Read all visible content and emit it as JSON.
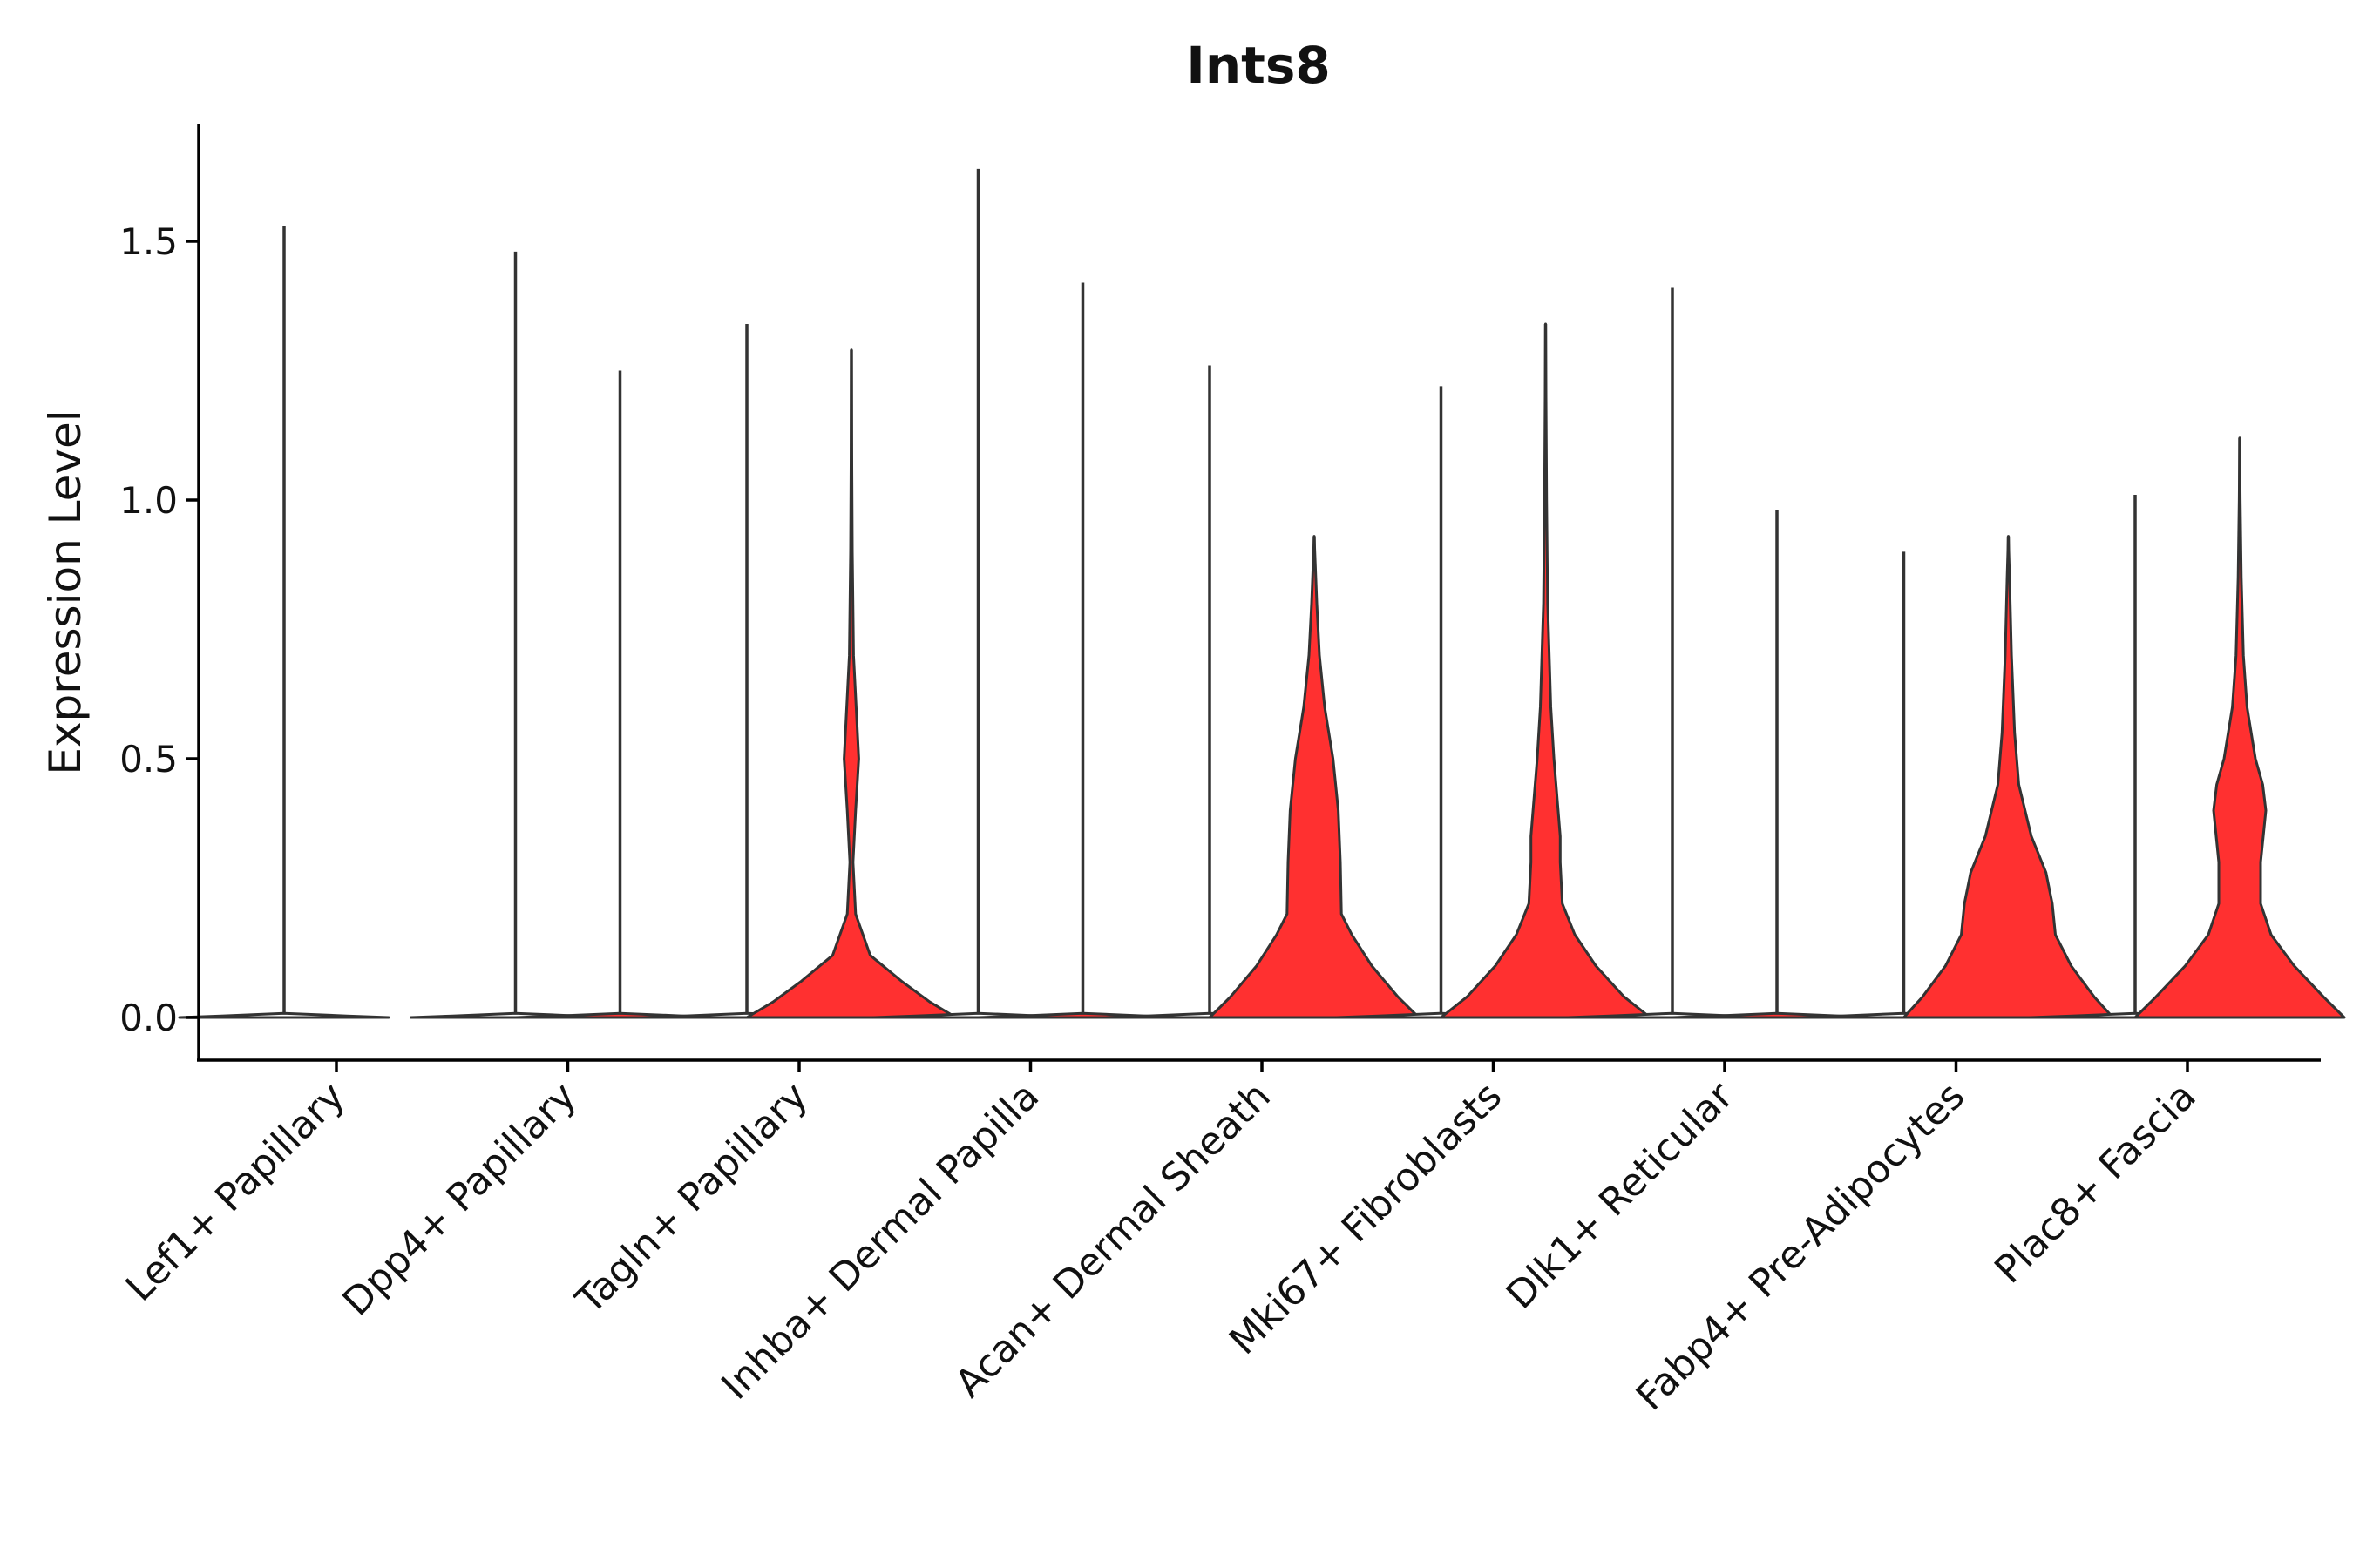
{
  "chart_data": {
    "type": "violin",
    "title": "Ints8",
    "xlabel": "",
    "ylabel": "Expression Level",
    "ylim": [
      -0.085,
      1.73
    ],
    "yticks": [
      0.0,
      0.5,
      1.0,
      1.5
    ],
    "ytick_labels": [
      "0.0",
      "0.5",
      "1.0",
      "1.5"
    ],
    "grid": false,
    "legend": "none",
    "categories": [
      "Lef1+ Papillary",
      "Dpp4+ Papillary",
      "Tagln+ Papillary",
      "Inhba+ Dermal Papilla",
      "Acan+ Dermal Sheath",
      "Mki67+ Fibroblasts",
      "Dlk1+ Reticular",
      "Fabp4+ Pre-Adipocytes",
      "Plac8+ Fascia"
    ],
    "groups": [
      {
        "name": "",
        "color": "#ffffff"
      },
      {
        "name": "",
        "color": "#ff3030"
      }
    ],
    "series": [
      {
        "category": "Lef1+ Papillary",
        "group": 0,
        "max": 1.53,
        "profile": [
          [
            0.0,
            1.0
          ],
          [
            0.003,
            0.6
          ],
          [
            0.008,
            0.0
          ]
        ]
      },
      {
        "category": "Lef1+ Papillary",
        "group": 1,
        "max": 0.0,
        "profile": []
      },
      {
        "category": "Dpp4+ Papillary",
        "group": 0,
        "max": 1.48,
        "profile": [
          [
            0.0,
            1.0
          ],
          [
            0.003,
            0.6
          ],
          [
            0.008,
            0.0
          ]
        ]
      },
      {
        "category": "Dpp4+ Papillary",
        "group": 1,
        "max": 1.25,
        "profile": [
          [
            0.0,
            1.0
          ],
          [
            0.003,
            0.6
          ],
          [
            0.008,
            0.0
          ]
        ]
      },
      {
        "category": "Tagln+ Papillary",
        "group": 0,
        "max": 1.34,
        "profile": [
          [
            0.0,
            1.0
          ],
          [
            0.003,
            0.6
          ],
          [
            0.008,
            0.0
          ]
        ]
      },
      {
        "category": "Tagln+ Papillary",
        "group": 1,
        "max": 1.29,
        "profile": [
          [
            0.0,
            1.0
          ],
          [
            0.03,
            0.75
          ],
          [
            0.07,
            0.48
          ],
          [
            0.12,
            0.18
          ],
          [
            0.2,
            0.04
          ],
          [
            0.3,
            0.015
          ],
          [
            0.4,
            0.04
          ],
          [
            0.5,
            0.07
          ],
          [
            0.58,
            0.05
          ],
          [
            0.7,
            0.02
          ],
          [
            0.9,
            0.008
          ],
          [
            1.1,
            0.003
          ],
          [
            1.29,
            0.0
          ]
        ]
      },
      {
        "category": "Inhba+ Dermal Papilla",
        "group": 0,
        "max": 1.64,
        "profile": [
          [
            0.0,
            1.0
          ],
          [
            0.003,
            0.6
          ],
          [
            0.008,
            0.0
          ]
        ]
      },
      {
        "category": "Inhba+ Dermal Papilla",
        "group": 1,
        "max": 1.42,
        "profile": [
          [
            0.0,
            1.0
          ],
          [
            0.003,
            0.6
          ],
          [
            0.008,
            0.0
          ]
        ]
      },
      {
        "category": "Acan+ Dermal Sheath",
        "group": 0,
        "max": 1.26,
        "profile": [
          [
            0.0,
            1.0
          ],
          [
            0.003,
            0.6
          ],
          [
            0.008,
            0.0
          ]
        ]
      },
      {
        "category": "Acan+ Dermal Sheath",
        "group": 1,
        "max": 0.93,
        "profile": [
          [
            0.0,
            1.0
          ],
          [
            0.04,
            0.8
          ],
          [
            0.1,
            0.55
          ],
          [
            0.16,
            0.36
          ],
          [
            0.2,
            0.26
          ],
          [
            0.3,
            0.25
          ],
          [
            0.4,
            0.23
          ],
          [
            0.5,
            0.18
          ],
          [
            0.6,
            0.1
          ],
          [
            0.7,
            0.05
          ],
          [
            0.8,
            0.025
          ],
          [
            0.93,
            0.0
          ]
        ]
      },
      {
        "category": "Mki67+ Fibroblasts",
        "group": 0,
        "max": 1.22,
        "profile": [
          [
            0.0,
            1.0
          ],
          [
            0.003,
            0.6
          ],
          [
            0.008,
            0.0
          ]
        ]
      },
      {
        "category": "Mki67+ Fibroblasts",
        "group": 1,
        "max": 1.34,
        "profile": [
          [
            0.0,
            1.0
          ],
          [
            0.04,
            0.75
          ],
          [
            0.1,
            0.48
          ],
          [
            0.16,
            0.28
          ],
          [
            0.22,
            0.16
          ],
          [
            0.3,
            0.14
          ],
          [
            0.35,
            0.14
          ],
          [
            0.4,
            0.12
          ],
          [
            0.5,
            0.08
          ],
          [
            0.6,
            0.05
          ],
          [
            0.8,
            0.02
          ],
          [
            1.0,
            0.01
          ],
          [
            1.2,
            0.004
          ],
          [
            1.34,
            0.0
          ]
        ]
      },
      {
        "category": "Dlk1+ Reticular",
        "group": 0,
        "max": 1.41,
        "profile": [
          [
            0.0,
            1.0
          ],
          [
            0.003,
            0.6
          ],
          [
            0.008,
            0.0
          ]
        ]
      },
      {
        "category": "Dlk1+ Reticular",
        "group": 1,
        "max": 0.98,
        "profile": [
          [
            0.0,
            1.0
          ],
          [
            0.003,
            0.6
          ],
          [
            0.008,
            0.0
          ]
        ]
      },
      {
        "category": "Fabp4+ Pre-Adipocytes",
        "group": 0,
        "max": 0.9,
        "profile": [
          [
            0.0,
            1.0
          ],
          [
            0.003,
            0.6
          ],
          [
            0.008,
            0.0
          ]
        ]
      },
      {
        "category": "Fabp4+ Pre-Adipocytes",
        "group": 1,
        "max": 0.93,
        "profile": [
          [
            0.0,
            1.0
          ],
          [
            0.04,
            0.82
          ],
          [
            0.1,
            0.6
          ],
          [
            0.16,
            0.45
          ],
          [
            0.22,
            0.42
          ],
          [
            0.28,
            0.36
          ],
          [
            0.35,
            0.22
          ],
          [
            0.45,
            0.1
          ],
          [
            0.55,
            0.06
          ],
          [
            0.7,
            0.03
          ],
          [
            0.85,
            0.012
          ],
          [
            0.93,
            0.0
          ]
        ]
      },
      {
        "category": "Plac8+ Fascia",
        "group": 0,
        "max": 1.01,
        "profile": [
          [
            0.0,
            1.0
          ],
          [
            0.003,
            0.6
          ],
          [
            0.008,
            0.0
          ]
        ]
      },
      {
        "category": "Plac8+ Fascia",
        "group": 1,
        "max": 1.12,
        "profile": [
          [
            0.0,
            1.0
          ],
          [
            0.04,
            0.8
          ],
          [
            0.1,
            0.52
          ],
          [
            0.16,
            0.3
          ],
          [
            0.22,
            0.2
          ],
          [
            0.3,
            0.2
          ],
          [
            0.4,
            0.25
          ],
          [
            0.45,
            0.22
          ],
          [
            0.5,
            0.15
          ],
          [
            0.6,
            0.07
          ],
          [
            0.7,
            0.035
          ],
          [
            0.85,
            0.015
          ],
          [
            1.0,
            0.005
          ],
          [
            1.12,
            0.0
          ]
        ]
      }
    ]
  }
}
